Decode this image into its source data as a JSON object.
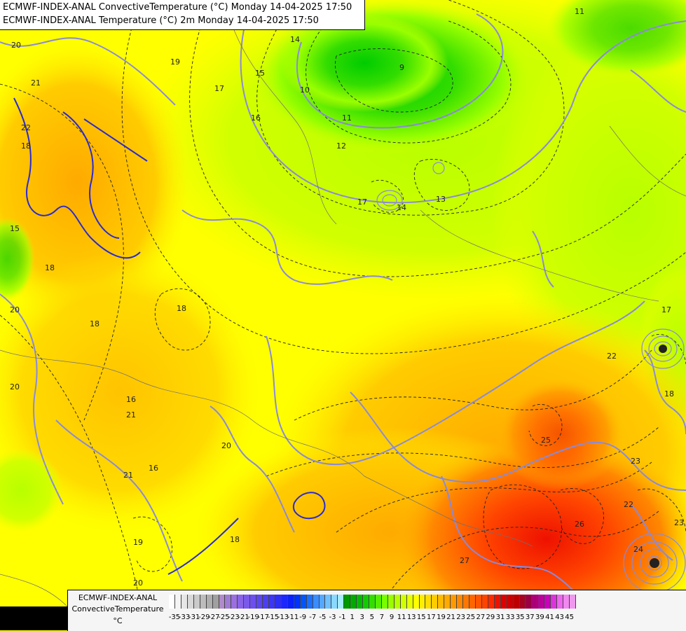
{
  "title_lines": [
    "ECMWF-INDEX-ANAL ConvectiveTemperature (°C) Monday 14-04-2025 17:50",
    "ECMWF-INDEX-ANAL Temperature (°C) 2m Monday 14-04-2025 17:50"
  ],
  "legend": {
    "name_line1": "ECMWF-INDEX-ANAL",
    "name_line2": "ConvectiveTemperature",
    "unit": "°C",
    "tick_labels": [
      "-35",
      "-33",
      "-31",
      "-29",
      "-27",
      "-25",
      "-23",
      "-21",
      "-19",
      "-17",
      "-15",
      "-13",
      "-11",
      "-9",
      "-7",
      "-5",
      "-3",
      "-1",
      "1",
      "3",
      "5",
      "7",
      "9",
      "11",
      "13",
      "15",
      "17",
      "19",
      "21",
      "23",
      "25",
      "27",
      "29",
      "31",
      "33",
      "35",
      "37",
      "39",
      "41",
      "43",
      "45"
    ],
    "colors": [
      "#ffffff",
      "#f4f4f4",
      "#e6e6e6",
      "#d8d8d8",
      "#cacaca",
      "#bcbcbc",
      "#aeaeae",
      "#a0a0a0",
      "#b08acb",
      "#a07bd6",
      "#9b6fe0",
      "#8a63e6",
      "#7c5ae9",
      "#6d4ff0",
      "#5c46f2",
      "#4b3ef4",
      "#3c36f6",
      "#2d2ef8",
      "#1c28fa",
      "#0a22fc",
      "#0033ff",
      "#0055ff",
      "#1a70ff",
      "#3a8dff",
      "#55a8ff",
      "#6fc2ff",
      "#8ad8ff",
      "#a6ecff",
      "#009900",
      "#00aa00",
      "#00bb00",
      "#11cc00",
      "#33dd00",
      "#55ee00",
      "#77ff00",
      "#99ff00",
      "#b8ff00",
      "#d2ff00",
      "#e8ff00",
      "#ffff00",
      "#ffee00",
      "#ffdd00",
      "#ffcc00",
      "#ffbb00",
      "#ffaa00",
      "#ff9900",
      "#ff8800",
      "#ff7700",
      "#ff6600",
      "#ff5500",
      "#ff4400",
      "#ff2a00",
      "#ee1100",
      "#dd0000",
      "#cc0000",
      "#bb0000",
      "#aa0022",
      "#990044",
      "#aa0077",
      "#bb0099",
      "#cc00bb",
      "#dd33dd",
      "#ee66ee",
      "#f088f0",
      "#ee99ee"
    ]
  },
  "contour_labels": [
    "20",
    "21",
    "19",
    "22",
    "18",
    "17",
    "16",
    "15",
    "14",
    "10",
    "12",
    "11",
    "17",
    "14",
    "13",
    "11",
    "18",
    "15",
    "18",
    "20",
    "18",
    "20",
    "21",
    "16",
    "16",
    "20",
    "21",
    "19",
    "20",
    "18",
    "25",
    "22",
    "23",
    "26",
    "27",
    "22",
    "24",
    "23",
    "18",
    "17",
    "9"
  ],
  "colors": {
    "cold": "#00cc00",
    "mid": "#ffff00",
    "warm": "#ff8800",
    "hot": "#ff2200",
    "contour_purple": "#8a8ad8",
    "contour_blue": "#2a2ad0"
  }
}
